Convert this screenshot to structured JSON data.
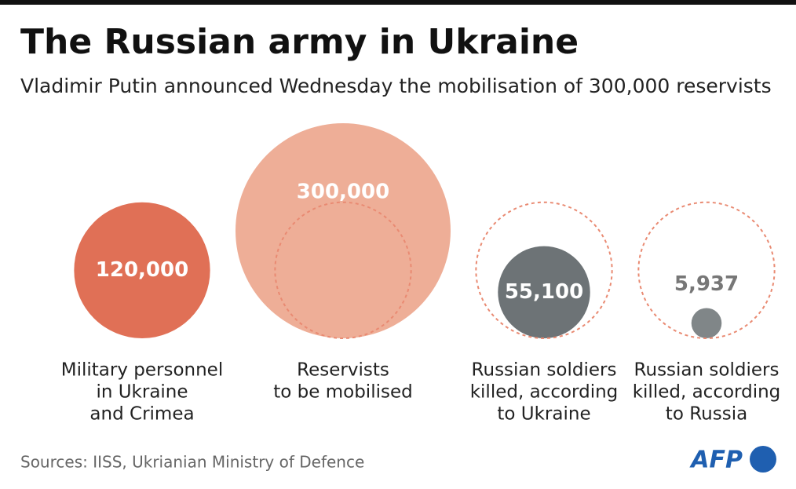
{
  "chart_data": {
    "type": "bubble",
    "title": "The Russian army in Ukraine",
    "subtitle": "Vladimir Putin announced Wednesday the mobilisation of  300,000 reservists",
    "categories": [
      [
        "Military personnel",
        "in Ukraine",
        "and Crimea"
      ],
      [
        "Reservists",
        "to be mobilised"
      ],
      [
        "Russian soldiers",
        "killed, according",
        "to Ukraine"
      ],
      [
        "Russian soldiers",
        "killed, according",
        "to Russia"
      ]
    ],
    "values": [
      120000,
      300000,
      55100,
      5937
    ],
    "value_labels": [
      "120,000",
      "300,000",
      "55,100",
      "5,937"
    ],
    "colors": [
      "#e07056",
      "#eeae97",
      "#6d7376",
      "#808688"
    ],
    "source": "Sources: IISS, Ukrianian Ministry of Defence",
    "logo": "AFP"
  }
}
